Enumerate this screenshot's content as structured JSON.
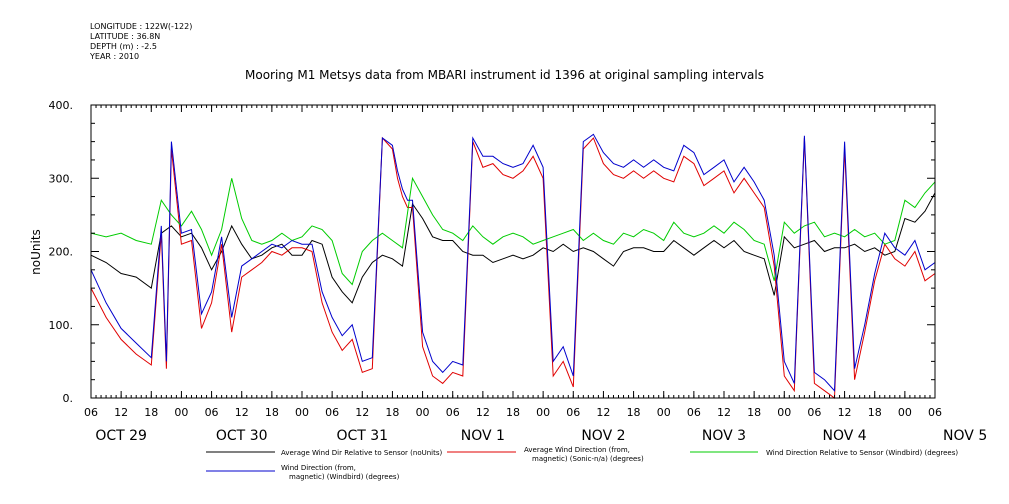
{
  "meta": {
    "longitude": "LONGITUDE : 122W(-122)",
    "latitude": "LATITUDE : 36.8N",
    "depth": "DEPTH (m) : -2.5",
    "year": "YEAR : 2010"
  },
  "chart_data": {
    "type": "line",
    "title": "Mooring M1 Metsys data from MBARI instrument id 1396 at original sampling intervals",
    "ylabel": "noUnits",
    "xlabel": "",
    "ylim": [
      0,
      400
    ],
    "yticks": [
      "0.",
      "100.",
      "200.",
      "300.",
      "400."
    ],
    "x_unit": "hours since Oct 29 2010 00:00",
    "xlim": [
      6,
      174
    ],
    "hour_tick_labels": [
      "06",
      "12",
      "18",
      "00",
      "06",
      "12",
      "18",
      "00",
      "06",
      "12",
      "18",
      "00",
      "06",
      "12",
      "18",
      "00",
      "06",
      "12",
      "18",
      "00",
      "06",
      "12",
      "18",
      "00",
      "06",
      "12",
      "18",
      "00",
      "06"
    ],
    "day_labels": [
      "OCT 29",
      "OCT 30",
      "OCT 31",
      "NOV  1",
      "NOV  2",
      "NOV  3",
      "NOV  4",
      "NOV  5"
    ],
    "grid": false,
    "legend_position": "bottom",
    "series": [
      {
        "name": "Average Wind Dir Relative to Sensor (noUnits)",
        "color": "#000000",
        "x": [
          6,
          9,
          12,
          15,
          18,
          20,
          22,
          24,
          26,
          28,
          30,
          32,
          34,
          36,
          38,
          40,
          42,
          44,
          46,
          48,
          50,
          52,
          54,
          56,
          58,
          60,
          62,
          64,
          66,
          68,
          70,
          72,
          74,
          76,
          78,
          80,
          82,
          84,
          86,
          88,
          90,
          92,
          94,
          96,
          98,
          100,
          102,
          104,
          106,
          108,
          110,
          112,
          114,
          116,
          118,
          120,
          122,
          124,
          126,
          128,
          130,
          132,
          134,
          136,
          138,
          140,
          142,
          144,
          146,
          148,
          150,
          152,
          154,
          156,
          158,
          160,
          162,
          164,
          166,
          168,
          170,
          172,
          174
        ],
        "y": [
          195,
          185,
          170,
          165,
          150,
          225,
          235,
          220,
          225,
          205,
          175,
          200,
          235,
          210,
          190,
          195,
          205,
          210,
          195,
          195,
          215,
          210,
          165,
          145,
          130,
          165,
          185,
          195,
          190,
          180,
          265,
          245,
          220,
          215,
          215,
          200,
          195,
          195,
          185,
          190,
          195,
          190,
          195,
          205,
          200,
          210,
          200,
          205,
          200,
          190,
          180,
          200,
          205,
          205,
          200,
          200,
          215,
          205,
          195,
          205,
          215,
          205,
          215,
          200,
          195,
          190,
          140,
          220,
          205,
          210,
          215,
          200,
          205,
          205,
          210,
          200,
          205,
          195,
          200,
          245,
          240,
          255,
          280
        ]
      },
      {
        "name": "Average Wind Direction (from, magnetic) (Sonic-n/a) (degrees)",
        "color": "#e00000",
        "x": [
          6,
          9,
          12,
          15,
          18,
          20,
          21,
          22,
          24,
          26,
          28,
          30,
          32,
          34,
          36,
          38,
          40,
          42,
          44,
          46,
          48,
          50,
          52,
          54,
          56,
          58,
          60,
          62,
          64,
          66,
          67,
          68,
          69,
          70,
          72,
          74,
          76,
          78,
          80,
          82,
          84,
          86,
          88,
          90,
          92,
          94,
          96,
          98,
          100,
          102,
          104,
          106,
          108,
          110,
          112,
          114,
          116,
          118,
          120,
          122,
          124,
          126,
          128,
          130,
          132,
          134,
          136,
          138,
          140,
          142,
          144,
          146,
          148,
          150,
          152,
          154,
          156,
          158,
          160,
          162,
          164,
          166,
          168,
          170,
          172,
          174
        ],
        "y": [
          150,
          110,
          80,
          60,
          45,
          225,
          40,
          340,
          210,
          215,
          95,
          130,
          210,
          90,
          165,
          175,
          185,
          200,
          195,
          205,
          205,
          200,
          130,
          90,
          65,
          80,
          35,
          40,
          355,
          340,
          300,
          275,
          260,
          260,
          70,
          30,
          20,
          35,
          30,
          350,
          315,
          320,
          305,
          300,
          310,
          330,
          300,
          30,
          50,
          15,
          340,
          355,
          320,
          305,
          300,
          310,
          300,
          310,
          300,
          295,
          330,
          320,
          290,
          300,
          310,
          280,
          300,
          280,
          260,
          180,
          30,
          10,
          355,
          20,
          10,
          0,
          340,
          25,
          90,
          160,
          210,
          190,
          180,
          200,
          160,
          170
        ]
      },
      {
        "name": "Wind Direction Relative to Sensor (Windbird) (degrees)",
        "color": "#00cc00",
        "x": [
          6,
          9,
          12,
          15,
          18,
          20,
          22,
          24,
          26,
          28,
          30,
          32,
          34,
          36,
          38,
          40,
          42,
          44,
          46,
          48,
          50,
          52,
          54,
          56,
          58,
          60,
          62,
          64,
          66,
          68,
          70,
          72,
          74,
          76,
          78,
          80,
          82,
          84,
          86,
          88,
          90,
          92,
          94,
          96,
          98,
          100,
          102,
          104,
          106,
          108,
          110,
          112,
          114,
          116,
          118,
          120,
          122,
          124,
          126,
          128,
          130,
          132,
          134,
          136,
          138,
          140,
          142,
          144,
          146,
          148,
          150,
          152,
          154,
          156,
          158,
          160,
          162,
          164,
          166,
          168,
          170,
          172,
          174
        ],
        "y": [
          225,
          220,
          225,
          215,
          210,
          270,
          250,
          235,
          255,
          230,
          195,
          230,
          300,
          245,
          215,
          210,
          215,
          225,
          215,
          220,
          235,
          230,
          215,
          170,
          155,
          200,
          215,
          225,
          215,
          205,
          300,
          275,
          250,
          230,
          225,
          215,
          235,
          220,
          210,
          220,
          225,
          220,
          210,
          215,
          220,
          225,
          230,
          215,
          225,
          215,
          210,
          225,
          220,
          230,
          225,
          215,
          240,
          225,
          220,
          225,
          235,
          225,
          240,
          230,
          215,
          210,
          160,
          240,
          225,
          235,
          240,
          220,
          225,
          220,
          230,
          220,
          225,
          210,
          215,
          270,
          260,
          280,
          295
        ]
      },
      {
        "name": "Wind Direction (from, magnetic) (Windbird) (degrees)",
        "color": "#0000cc",
        "x": [
          6,
          9,
          12,
          15,
          18,
          20,
          21,
          22,
          24,
          26,
          28,
          30,
          32,
          34,
          36,
          38,
          40,
          42,
          44,
          46,
          48,
          50,
          52,
          54,
          56,
          58,
          60,
          62,
          64,
          66,
          67,
          68,
          69,
          70,
          72,
          74,
          76,
          78,
          80,
          82,
          84,
          86,
          88,
          90,
          92,
          94,
          96,
          98,
          100,
          102,
          104,
          106,
          108,
          110,
          112,
          114,
          116,
          118,
          120,
          122,
          124,
          126,
          128,
          130,
          132,
          134,
          136,
          138,
          140,
          142,
          144,
          146,
          148,
          150,
          152,
          154,
          156,
          158,
          160,
          162,
          164,
          166,
          168,
          170,
          172,
          174
        ],
        "y": [
          175,
          130,
          95,
          75,
          55,
          235,
          50,
          350,
          225,
          230,
          115,
          145,
          220,
          110,
          180,
          190,
          200,
          210,
          205,
          215,
          210,
          210,
          145,
          110,
          85,
          100,
          50,
          55,
          355,
          345,
          310,
          285,
          270,
          270,
          90,
          50,
          35,
          50,
          45,
          355,
          330,
          330,
          320,
          315,
          320,
          345,
          315,
          50,
          70,
          30,
          350,
          360,
          335,
          320,
          315,
          325,
          315,
          325,
          315,
          310,
          345,
          335,
          305,
          315,
          325,
          295,
          315,
          295,
          270,
          195,
          50,
          20,
          358,
          35,
          25,
          10,
          350,
          40,
          100,
          170,
          225,
          205,
          195,
          215,
          175,
          185
        ]
      }
    ]
  }
}
